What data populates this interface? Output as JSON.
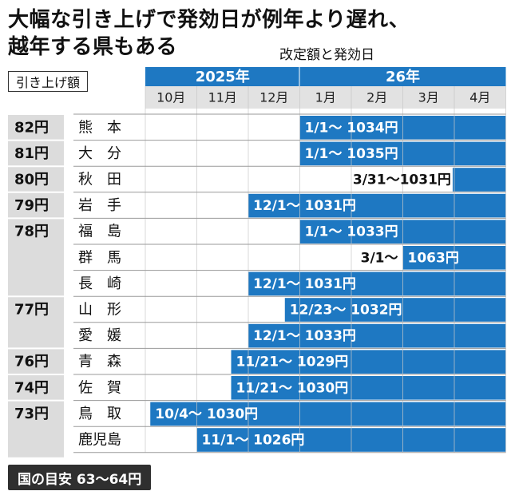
{
  "header": {
    "title_line1": "大幅な引き上げで発効日が例年より遅れ、",
    "title_line2": "越年する県もある",
    "subtitle": "改定額と発効日",
    "raise_label": "引き上げ額"
  },
  "footer": {
    "text": "国の目安 63〜64円"
  },
  "colors": {
    "bar": "#1e78c2",
    "header": "#1e78c2",
    "gray": "#dcdcdc",
    "footer": "#2f2f2f"
  },
  "chart_data": {
    "type": "bar",
    "title": "大幅な引き上げで発効日が例年より遅れ、越年する県もある",
    "subtitle": "改定額と発効日",
    "years": [
      {
        "label": "2025年",
        "months": [
          "10月",
          "11月",
          "12月"
        ]
      },
      {
        "label": "26年",
        "months": [
          "1月",
          "2月",
          "3月",
          "4月"
        ]
      }
    ],
    "months": [
      "10月",
      "11月",
      "12月",
      "1月",
      "2月",
      "3月",
      "4月"
    ],
    "rows": [
      {
        "raise": "82円",
        "pref": "熊　本",
        "start": "2026-01-01",
        "label": "1/1〜 1034円"
      },
      {
        "raise": "81円",
        "pref": "大　分",
        "start": "2026-01-01",
        "label": "1/1〜 1035円"
      },
      {
        "raise": "80円",
        "pref": "秋　田",
        "start": "2026-03-31",
        "label": "3/31〜1031円"
      },
      {
        "raise": "79円",
        "pref": "岩　手",
        "start": "2025-12-01",
        "label": "12/1〜 1031円"
      },
      {
        "raise": "78円",
        "pref": "福　島",
        "start": "2026-01-01",
        "label": "1/1〜 1033円"
      },
      {
        "raise": "",
        "pref": "群　馬",
        "start": "2026-03-01",
        "label": "3/1〜",
        "label2": "1063円"
      },
      {
        "raise": "",
        "pref": "長　崎",
        "start": "2025-12-01",
        "label": "12/1〜 1031円"
      },
      {
        "raise": "77円",
        "pref": "山　形",
        "start": "2025-12-23",
        "label": "12/23〜 1032円"
      },
      {
        "raise": "",
        "pref": "愛　媛",
        "start": "2025-12-01",
        "label": "12/1〜 1033円"
      },
      {
        "raise": "76円",
        "pref": "青　森",
        "start": "2025-11-21",
        "label": "11/21〜 1029円"
      },
      {
        "raise": "74円",
        "pref": "佐　賀",
        "start": "2025-11-21",
        "label": "11/21〜 1030円"
      },
      {
        "raise": "73円",
        "pref": "鳥　取",
        "start": "2025-10-04",
        "label": "10/4〜 1030円"
      },
      {
        "raise": "",
        "pref": "鹿児島",
        "start": "2025-11-01",
        "label": "11/1〜 1026円"
      }
    ]
  }
}
